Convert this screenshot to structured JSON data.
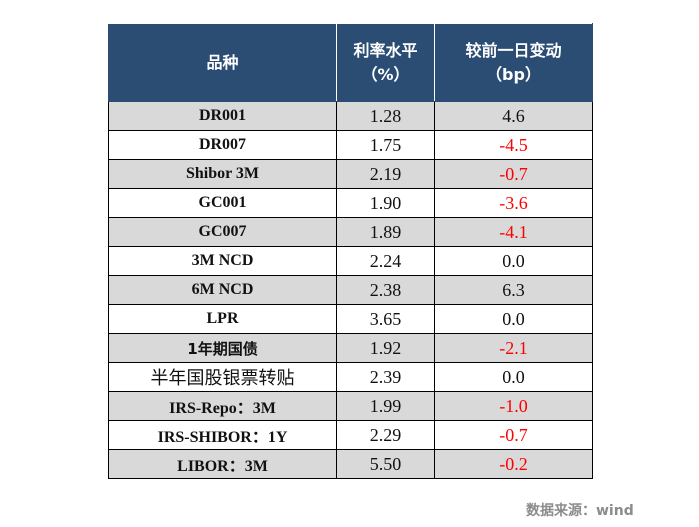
{
  "table": {
    "headers": {
      "name": "品种",
      "rate_line1": "利率水平",
      "rate_line2": "（%）",
      "change_line1": "较前一日变动",
      "change_line2": "（bp）"
    },
    "rows": [
      {
        "name": "DR001",
        "rate": "1.28",
        "change": "4.6"
      },
      {
        "name": "DR007",
        "rate": "1.75",
        "change": "-4.5"
      },
      {
        "name": "Shibor 3M",
        "rate": "2.19",
        "change": "-0.7"
      },
      {
        "name": "GC001",
        "rate": "1.90",
        "change": "-3.6"
      },
      {
        "name": "GC007",
        "rate": "1.89",
        "change": "-4.1"
      },
      {
        "name": "3M NCD",
        "rate": "2.24",
        "change": "0.0"
      },
      {
        "name": "6M NCD",
        "rate": "2.38",
        "change": "6.3"
      },
      {
        "name": "LPR",
        "rate": "3.65",
        "change": "0.0"
      },
      {
        "name": "1年期国债",
        "rate": "1.92",
        "change": "-2.1"
      },
      {
        "name": "半年国股银票转贴",
        "rate": "2.39",
        "change": "0.0"
      },
      {
        "name": "IRS-Repo：3M",
        "rate": "1.99",
        "change": "-1.0"
      },
      {
        "name": "IRS-SHIBOR：1Y",
        "rate": "2.29",
        "change": "-0.7"
      },
      {
        "name": "LIBOR：3M",
        "rate": "5.50",
        "change": "-0.2"
      }
    ],
    "colors": {
      "header_bg": "#2b4d74",
      "row_grey": "#d9d9d9",
      "row_white": "#ffffff",
      "negative": "#ff0000"
    }
  },
  "source": "数据来源：wind"
}
